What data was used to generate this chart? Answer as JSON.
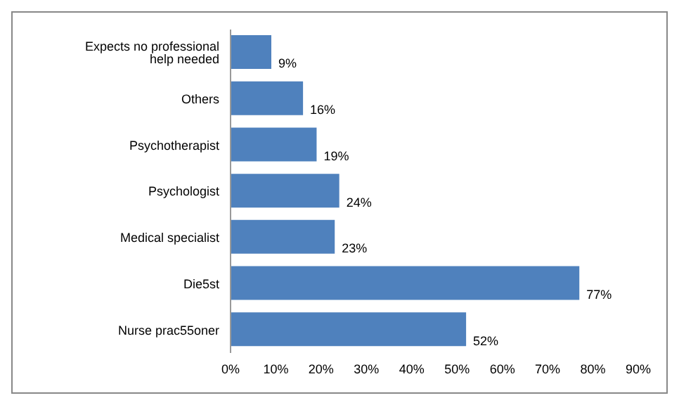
{
  "chart_data": {
    "type": "bar",
    "orientation": "horizontal",
    "categories": [
      "Expects no professional help needed",
      "Others",
      "Psychotherapist",
      "Psychologist",
      "Medical specialist",
      "Die5st",
      "Nurse prac55oner"
    ],
    "values": [
      9,
      16,
      19,
      24,
      23,
      77,
      52
    ],
    "value_labels": [
      "9%",
      "16%",
      "19%",
      "24%",
      "23%",
      "77%",
      "52%"
    ],
    "color": "#4f81bd",
    "xlim": [
      0,
      90
    ],
    "xticks": [
      {
        "value": 0,
        "label": "0%"
      },
      {
        "value": 10,
        "label": "10%"
      },
      {
        "value": 20,
        "label": "20%"
      },
      {
        "value": 30,
        "label": "30%"
      },
      {
        "value": 40,
        "label": "40%"
      },
      {
        "value": 50,
        "label": "50%"
      },
      {
        "value": 60,
        "label": "60%"
      },
      {
        "value": 70,
        "label": "70%"
      },
      {
        "value": 80,
        "label": "80%"
      },
      {
        "value": 90,
        "label": "90%"
      }
    ],
    "grid": false
  }
}
